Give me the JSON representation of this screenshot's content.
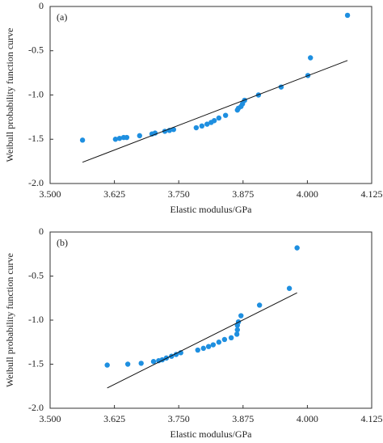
{
  "chart_data": [
    {
      "type": "scatter",
      "annotation": "(a)",
      "xlabel": "Elastic modulus/GPa",
      "ylabel": "Weibull probability function curve",
      "color": "#1e8fe0",
      "x": [
        3.563,
        3.627,
        3.635,
        3.643,
        3.649,
        3.674,
        3.698,
        3.704,
        3.723,
        3.732,
        3.74,
        3.784,
        3.795,
        3.805,
        3.813,
        3.819,
        3.828,
        3.841,
        3.864,
        3.866,
        3.871,
        3.874,
        3.878,
        3.905,
        3.949,
        4.001,
        4.006,
        4.078
      ],
      "y": [
        -1.51,
        -1.5,
        -1.49,
        -1.48,
        -1.48,
        -1.46,
        -1.44,
        -1.43,
        -1.41,
        -1.4,
        -1.39,
        -1.37,
        -1.35,
        -1.33,
        -1.31,
        -1.29,
        -1.26,
        -1.23,
        -1.17,
        -1.15,
        -1.13,
        -1.1,
        -1.06,
        -1.0,
        -0.91,
        -0.78,
        -0.58,
        -0.1
      ],
      "fit_line": {
        "x": [
          3.563,
          4.078
        ],
        "y": [
          -1.76,
          -0.61
        ]
      },
      "xlim": [
        3.5,
        4.125
      ],
      "ylim": [
        -2.0,
        0
      ],
      "xticks": [
        {
          "value": 3.5,
          "label": "3.500"
        },
        {
          "value": 3.625,
          "label": "3.625"
        },
        {
          "value": 3.75,
          "label": "3.750"
        },
        {
          "value": 3.875,
          "label": "3.875"
        },
        {
          "value": 4.0,
          "label": "4.000"
        },
        {
          "value": 4.125,
          "label": "4.125"
        }
      ],
      "yticks": [
        0,
        -0.5,
        {
          "value": -1.0,
          "label": "-1.0"
        },
        -1.5,
        {
          "value": -2.0,
          "label": "-2.0"
        }
      ]
    },
    {
      "type": "scatter",
      "annotation": "(b)",
      "xlabel": "Elastic modulus/GPa",
      "ylabel": "Weibull probability function curve",
      "color": "#1e8fe0",
      "x": [
        3.611,
        3.651,
        3.677,
        3.701,
        3.711,
        3.718,
        3.726,
        3.736,
        3.745,
        3.754,
        3.787,
        3.798,
        3.808,
        3.817,
        3.828,
        3.839,
        3.852,
        3.863,
        3.864,
        3.864,
        3.866,
        3.871,
        3.907,
        3.965,
        3.98
      ],
      "y": [
        -1.51,
        -1.5,
        -1.49,
        -1.47,
        -1.46,
        -1.45,
        -1.43,
        -1.41,
        -1.39,
        -1.37,
        -1.34,
        -1.32,
        -1.3,
        -1.28,
        -1.25,
        -1.22,
        -1.2,
        -1.16,
        -1.11,
        -1.06,
        -1.02,
        -0.95,
        -0.83,
        -0.64,
        -0.18
      ],
      "fit_line": {
        "x": [
          3.611,
          3.98
        ],
        "y": [
          -1.77,
          -0.69
        ]
      },
      "xlim": [
        3.5,
        4.125
      ],
      "ylim": [
        -2.0,
        0
      ],
      "xticks": [
        {
          "value": 3.5,
          "label": "3.500"
        },
        {
          "value": 3.625,
          "label": "3.625"
        },
        {
          "value": 3.75,
          "label": "3.750"
        },
        {
          "value": 3.875,
          "label": "3.875"
        },
        {
          "value": 4.0,
          "label": "4.000"
        },
        {
          "value": 4.125,
          "label": "4.125"
        }
      ],
      "yticks": [
        0,
        -0.5,
        {
          "value": -1.0,
          "label": "-1.0"
        },
        -1.5,
        {
          "value": -2.0,
          "label": "-2.0"
        }
      ]
    }
  ]
}
